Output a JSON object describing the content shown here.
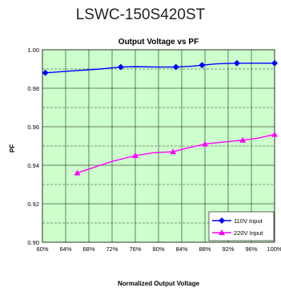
{
  "page": {
    "heading": "LSWC-150S420ST"
  },
  "chart_data": {
    "type": "line",
    "title": "Output Voltage vs PF",
    "xlabel": "Normalized Output Voltage",
    "ylabel": "PF",
    "xlim": [
      60,
      100
    ],
    "ylim": [
      0.9,
      1.0
    ],
    "x_ticks": [
      "60%",
      "64%",
      "68%",
      "72%",
      "76%",
      "80%",
      "84%",
      "88%",
      "92%",
      "96%",
      "100%"
    ],
    "y_ticks": [
      "0.90",
      "0.92",
      "0.94",
      "0.96",
      "0.98",
      "1.00"
    ],
    "grid": true,
    "plot_background": "#ccffcc",
    "legend_position": "bottom-right",
    "series": [
      {
        "name": "110V Input",
        "color": "#0000ff",
        "marker": "diamond",
        "x": [
          60.5,
          73.5,
          83,
          87.5,
          93.5,
          100
        ],
        "y": [
          0.988,
          0.991,
          0.991,
          0.992,
          0.993,
          0.993
        ],
        "line_x": [
          60.5,
          65,
          70,
          73.5,
          76,
          80,
          83,
          86,
          87.5,
          90,
          93.5,
          97,
          100
        ],
        "line_y": [
          0.988,
          0.989,
          0.99,
          0.991,
          0.9912,
          0.991,
          0.991,
          0.9915,
          0.992,
          0.9927,
          0.993,
          0.993,
          0.993
        ]
      },
      {
        "name": "220V Input",
        "color": "#ff00ff",
        "marker": "triangle",
        "x": [
          66,
          76,
          82.5,
          88,
          94.5,
          100
        ],
        "y": [
          0.936,
          0.945,
          0.947,
          0.951,
          0.953,
          0.956
        ],
        "line_x": [
          66,
          72,
          76,
          79,
          82.5,
          85,
          88,
          91,
          94.5,
          97,
          100
        ],
        "line_y": [
          0.936,
          0.942,
          0.945,
          0.9465,
          0.947,
          0.949,
          0.951,
          0.952,
          0.953,
          0.954,
          0.956
        ]
      }
    ]
  }
}
